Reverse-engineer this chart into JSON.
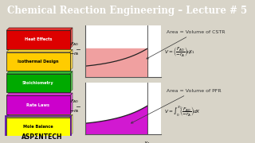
{
  "title": "Chemical Reaction Engineering – Lecture # 5",
  "title_bg": "#b01010",
  "title_color": "#ffffff",
  "title_fontsize": 8.5,
  "bg_color": "#d8d4c8",
  "plot_bg": "#ffffff",
  "left_blocks": [
    {
      "label": "Heat Effects",
      "bg": "#dd0000",
      "fg": "#ffffff"
    },
    {
      "label": "Isothermal Design",
      "bg": "#ffcc00",
      "fg": "#000000"
    },
    {
      "label": "Stoichiometry",
      "bg": "#00aa00",
      "fg": "#ffffff"
    },
    {
      "label": "Rate Laws",
      "bg": "#cc00cc",
      "fg": "#ffffff"
    },
    {
      "label": "Mole Balance",
      "bg": "#ffff00",
      "fg": "#000000"
    }
  ],
  "block_border": "#5500aa",
  "aspentech_text": "ASPΣNTECH",
  "cstr_fill": "#f0a0a0",
  "pfr_fill": "#cc00cc",
  "curve_color": "#222222",
  "cstr_annotation": "Area = Volume of CSTR",
  "pfr_annotation": "Area = Volume of PFR",
  "spine_color": "#555555",
  "annotation_fs": 4.5,
  "label_fs": 5.0,
  "formula_fs": 4.2
}
